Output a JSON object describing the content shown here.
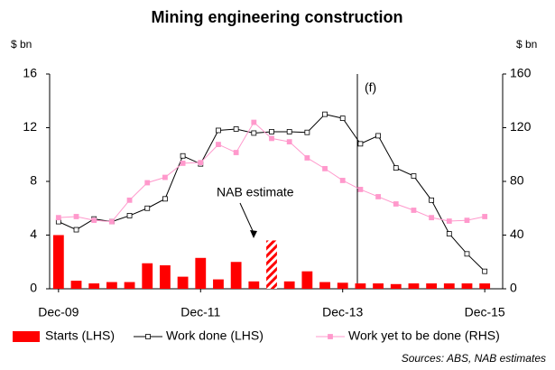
{
  "chart_data": {
    "type": "bar_line",
    "title": "Mining engineering construction",
    "y_label": "$ bn",
    "y2_label": "$ bn",
    "categories": [
      "Dec-09",
      null,
      null,
      null,
      null,
      null,
      null,
      null,
      "Dec-11",
      null,
      null,
      null,
      null,
      null,
      null,
      null,
      "Dec-13",
      null,
      null,
      null,
      null,
      null,
      null,
      null,
      "Dec-15"
    ],
    "series": [
      {
        "name": "Starts (LHS)",
        "kind": "bar",
        "color": "#ff0000",
        "hatched_index": 12,
        "values": [
          4.0,
          0.6,
          0.4,
          0.5,
          0.5,
          1.9,
          1.75,
          0.9,
          2.3,
          0.7,
          2.0,
          0.55,
          3.6,
          0.55,
          1.3,
          0.5,
          0.45,
          0.4,
          0.4,
          0.35,
          0.4,
          0.4,
          0.4,
          0.4,
          0.4
        ]
      },
      {
        "name": "Work done (LHS)",
        "kind": "line",
        "color": "#000000",
        "values": [
          5.0,
          4.4,
          5.2,
          5.0,
          5.45,
          6.0,
          6.7,
          9.9,
          9.3,
          11.8,
          11.9,
          11.6,
          11.7,
          11.7,
          11.65,
          13.0,
          12.7,
          10.8,
          11.4,
          9.0,
          8.4,
          6.6,
          4.1,
          2.6,
          1.3
        ]
      },
      {
        "name": "Work yet to be done (RHS)",
        "kind": "line",
        "axis": "y2",
        "color": "#ff99cc",
        "values": [
          53,
          53.8,
          51,
          50,
          66,
          79,
          83,
          93.5,
          94,
          107.5,
          101.5,
          124,
          112,
          109.5,
          97.5,
          89.5,
          80.7,
          74,
          68.6,
          63.2,
          58.5,
          53,
          50.4,
          51,
          53.8
        ]
      }
    ],
    "ylim": [
      0,
      16
    ],
    "yticks": [
      0,
      4,
      8,
      12,
      16
    ],
    "y2lim": [
      0,
      160
    ],
    "y2ticks": [
      0,
      40,
      80,
      120,
      160
    ],
    "annotations": [
      "NAB estimate",
      "(f)"
    ],
    "source": "Sources: ABS, NAB estimates"
  }
}
